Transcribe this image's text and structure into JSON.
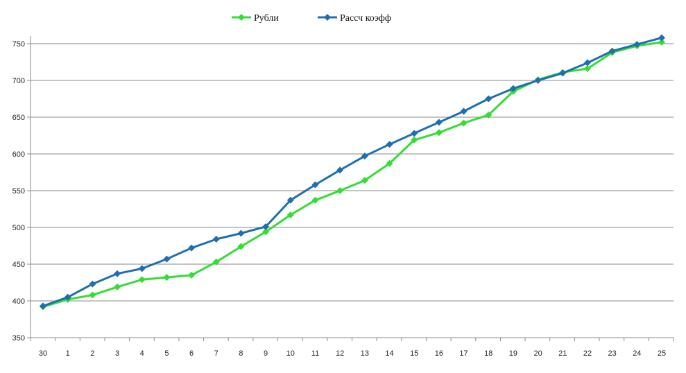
{
  "chart_data": {
    "type": "line",
    "categories": [
      "30",
      "1",
      "2",
      "3",
      "4",
      "5",
      "6",
      "7",
      "8",
      "9",
      "10",
      "11",
      "12",
      "13",
      "14",
      "15",
      "16",
      "17",
      "18",
      "19",
      "20",
      "21",
      "22",
      "23",
      "24",
      "25"
    ],
    "series": [
      {
        "name": "Рубли",
        "color": "#33dd33",
        "marker": "diamond",
        "values": [
          392,
          402,
          408,
          419,
          429,
          432,
          435,
          453,
          474,
          494,
          517,
          537,
          550,
          564,
          587,
          619,
          629,
          642,
          653,
          685,
          701,
          711,
          716,
          738,
          747,
          752
        ]
      },
      {
        "name": "Рассч коэфф",
        "color": "#1f6fb0",
        "marker": "diamond",
        "values": [
          393,
          405,
          423,
          437,
          444,
          457,
          472,
          484,
          492,
          501,
          537,
          558,
          578,
          597,
          613,
          628,
          643,
          658,
          675,
          689,
          700,
          710,
          724,
          740,
          749,
          758
        ]
      }
    ],
    "yticks": [
      "350",
      "400",
      "450",
      "500",
      "550",
      "600",
      "650",
      "700",
      "750"
    ],
    "ylim": [
      350,
      770
    ],
    "grid": "horizontal",
    "legend_position": "top-center"
  }
}
